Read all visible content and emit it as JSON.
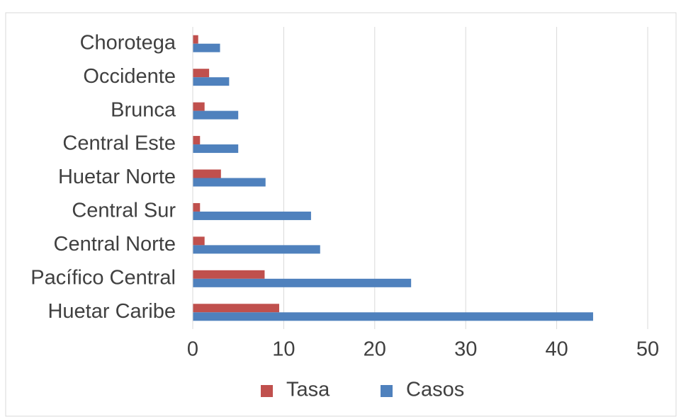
{
  "chart_data": {
    "type": "barh",
    "categories": [
      "Chorotega",
      "Occidente",
      "Brunca",
      "Central Este",
      "Huetar Norte",
      "Central Sur",
      "Central Norte",
      "Pacífico Central",
      "Huetar Caribe"
    ],
    "series": [
      {
        "name": "Tasa",
        "color": "#c0504d",
        "values": [
          0.6,
          1.8,
          1.3,
          0.8,
          3.1,
          0.8,
          1.3,
          7.9,
          9.5
        ]
      },
      {
        "name": "Casos",
        "color": "#4f81bd",
        "values": [
          3,
          4,
          5,
          5,
          8,
          13,
          14,
          24,
          44
        ]
      }
    ],
    "xlim": [
      0,
      50
    ],
    "xticks": [
      0,
      10,
      20,
      30,
      40,
      50
    ],
    "grid": true,
    "legend": "bottom"
  }
}
